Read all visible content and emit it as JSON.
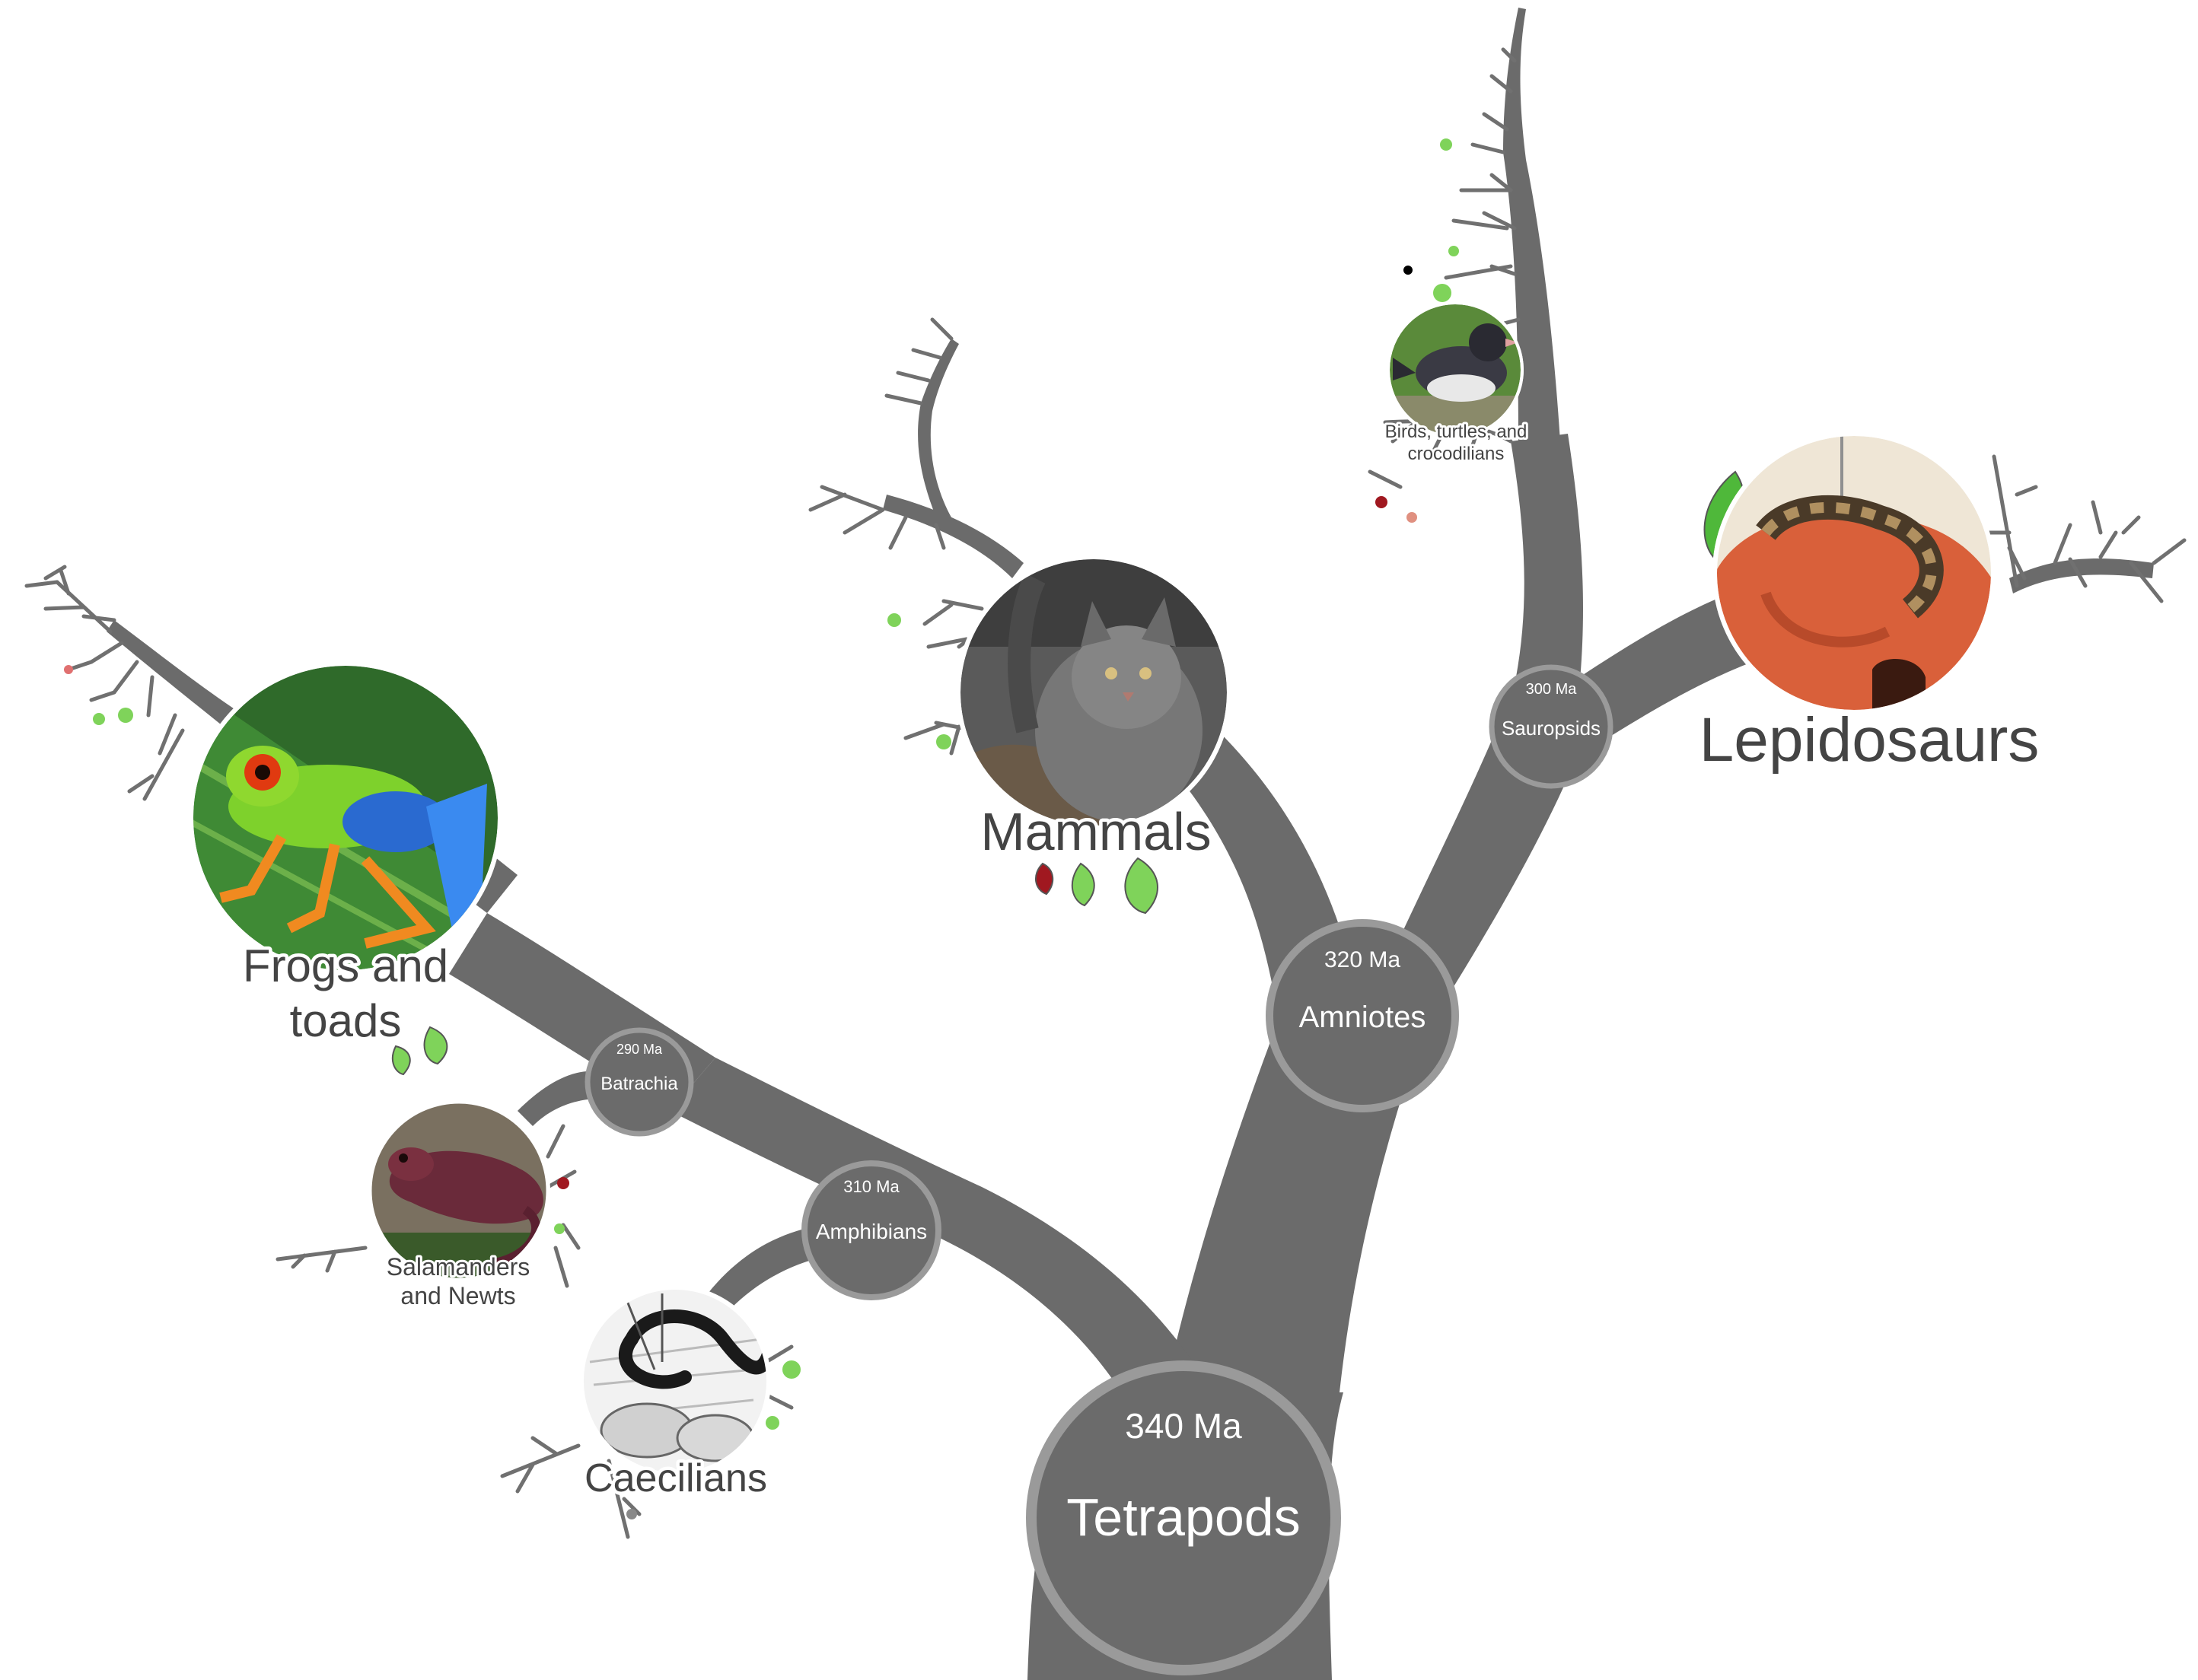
{
  "colors": {
    "branch": "#6b6b6b",
    "node_ring": "#9a9a9a",
    "twig": "#707070",
    "leaf_green": "#7fd35a",
    "leaf_red": "#a01820",
    "text_dark": "#444444",
    "text_light": "#ffffff"
  },
  "nodes": {
    "tetrapods": {
      "date": "340 Ma",
      "label": "Tetrapods"
    },
    "amniotes": {
      "date": "320 Ma",
      "label": "Amniotes"
    },
    "amphibians": {
      "date": "310 Ma",
      "label": "Amphibians"
    },
    "sauropsids": {
      "date": "300 Ma",
      "label": "Sauropsids"
    },
    "batrachia": {
      "date": "290 Ma",
      "label": "Batrachia"
    }
  },
  "leaves": {
    "mammals": {
      "label": "Mammals",
      "image": "bobcat-photo"
    },
    "lepidosaurs": {
      "label": "Lepidosaurs",
      "image": "snake-photo"
    },
    "birds": {
      "label_line1": "Birds, turtles, and",
      "label_line2": "crocodilians",
      "image": "bird-photo"
    },
    "frogs": {
      "label_line1": "Frogs and",
      "label_line2": "toads",
      "image": "frog-photo"
    },
    "salamanders": {
      "label_line1": "Salamanders",
      "label_line2": "and Newts",
      "image": "salamander-photo"
    },
    "caecilians": {
      "label": "Caecilians",
      "image": "caecilian-drawing"
    }
  }
}
